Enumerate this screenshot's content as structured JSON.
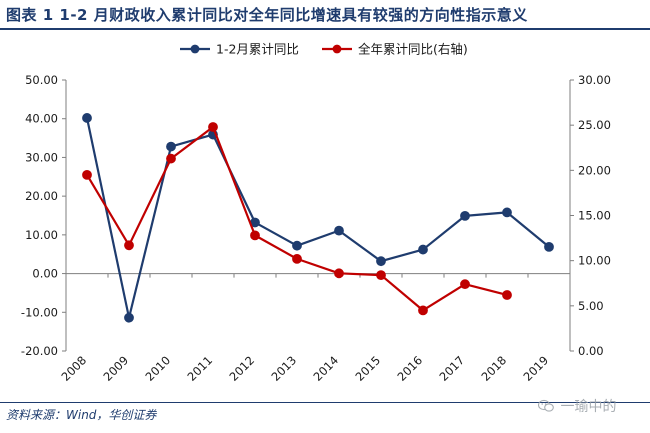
{
  "header": {
    "title": "图表 1   1-2 月财政收入累计同比对全年同比增速具有较强的方向性指示意义"
  },
  "footer": {
    "source": "资料来源：Wind，华创证券"
  },
  "watermark": {
    "text": "一瑜中的",
    "icon": "wechat-icon"
  },
  "colors": {
    "series_left": "#1f3c6e",
    "series_right": "#c00000",
    "axis_text": "#1a1a1a"
  },
  "chart_data": {
    "type": "line",
    "categories": [
      "2008",
      "2009",
      "2010",
      "2011",
      "2012",
      "2013",
      "2014",
      "2015",
      "2016",
      "2017",
      "2018",
      "2019"
    ],
    "left_axis": {
      "ylim": [
        -20,
        50
      ],
      "ticks": [
        "-20.00",
        "-10.00",
        "0.00",
        "10.00",
        "20.00",
        "30.00",
        "40.00",
        "50.00"
      ]
    },
    "right_axis": {
      "ylim": [
        0,
        30
      ],
      "ticks": [
        "0.00",
        "5.00",
        "10.00",
        "15.00",
        "20.00",
        "25.00",
        "30.00"
      ]
    },
    "legend_position": "top",
    "series": [
      {
        "name": "1-2月累计同比",
        "axis": "left",
        "values": [
          40.2,
          -11.4,
          32.8,
          35.9,
          13.2,
          7.2,
          11.1,
          3.2,
          6.2,
          14.9,
          15.8,
          6.9
        ]
      },
      {
        "name": "全年累计同比(右轴)",
        "axis": "right",
        "values": [
          19.5,
          11.7,
          21.3,
          24.8,
          12.8,
          10.2,
          8.6,
          8.4,
          4.5,
          7.4,
          6.2,
          null
        ]
      }
    ]
  }
}
